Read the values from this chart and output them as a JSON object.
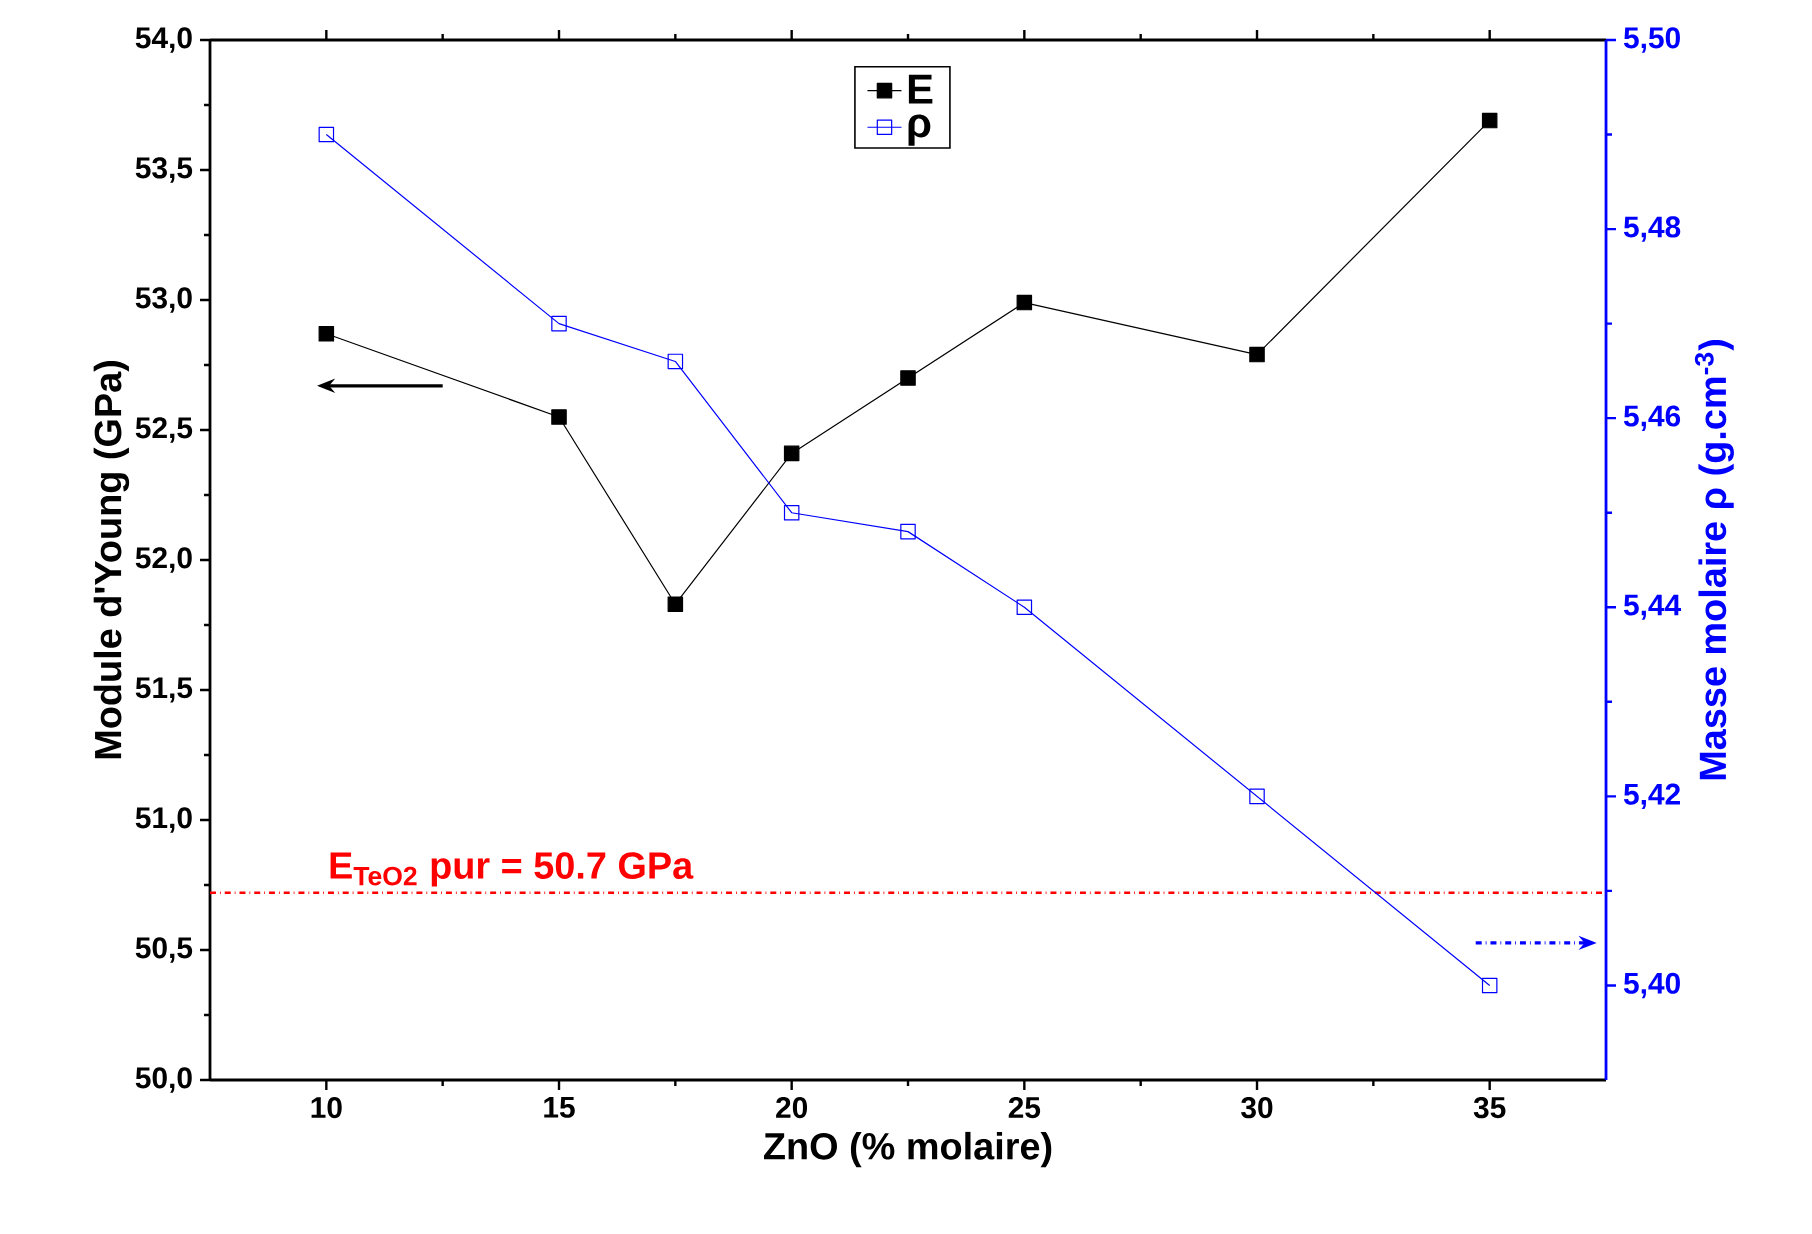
{
  "chart_data": {
    "type": "line",
    "xlabel": "ZnO (% molaire)",
    "ylabel": "Module d'Young (GPa)",
    "y2label": "Masse molaire ρ (g.cm$^{-3}$)",
    "x": [
      10,
      15,
      17.5,
      20,
      22.5,
      25,
      30,
      35
    ],
    "series": [
      {
        "name": "E",
        "color": "#000000",
        "marker": "square",
        "values": [
          52.87,
          52.55,
          51.83,
          52.41,
          52.7,
          52.99,
          52.79,
          53.69
        ]
      },
      {
        "name": "ρ",
        "color": "#0000ff",
        "marker": "square_open",
        "axis": "y2",
        "values": [
          5.49,
          5.47,
          5.466,
          5.45,
          5.448,
          5.44,
          5.42,
          5.4
        ]
      }
    ],
    "xlim": [
      7.5,
      37.5
    ],
    "xticks": [
      10,
      15,
      20,
      25,
      30,
      35
    ],
    "ylim": [
      50,
      54
    ],
    "yticks": [
      {
        "value": 50,
        "label": "50,0"
      },
      {
        "value": 50.5,
        "label": "50,5"
      },
      {
        "value": 51,
        "label": "51,0"
      },
      {
        "value": 51.5,
        "label": "51,5"
      },
      {
        "value": 52,
        "label": "52,0"
      },
      {
        "value": 52.5,
        "label": "52,5"
      },
      {
        "value": 53,
        "label": "53,0"
      },
      {
        "value": 53.5,
        "label": "53,5"
      },
      {
        "value": 54,
        "label": "54,0"
      }
    ],
    "y2lim": [
      5.39,
      5.5
    ],
    "y2ticks": [
      {
        "value": 5.4,
        "label": "5,40"
      },
      {
        "value": 5.42,
        "label": "5,42"
      },
      {
        "value": 5.44,
        "label": "5,44"
      },
      {
        "value": 5.46,
        "label": "5,46"
      },
      {
        "value": 5.48,
        "label": "5,48"
      },
      {
        "value": 5.5,
        "label": "5,50"
      }
    ],
    "ref_lines": [
      {
        "axis": "y",
        "value": 50.72,
        "label": "E$_{TeO2}$ pur = 50.7 GPa",
        "color": "#ff0000",
        "line_style": "dashdot"
      }
    ],
    "legend": "top",
    "line_style": "solid",
    "grid": false
  }
}
